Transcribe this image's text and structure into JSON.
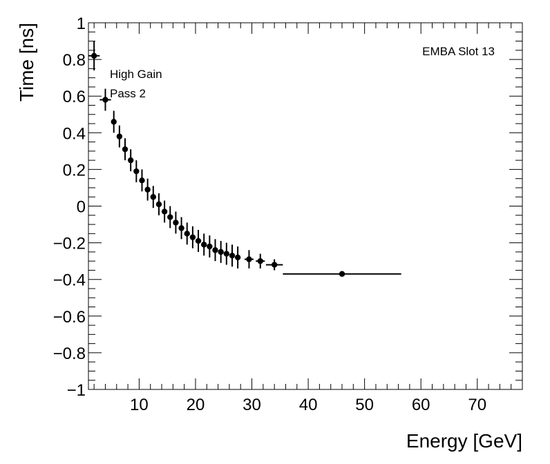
{
  "chart_data": {
    "type": "scatter",
    "title": "",
    "xlabel": "Energy [GeV]",
    "ylabel": "Time [ns]",
    "xlim": [
      1,
      78
    ],
    "ylim": [
      -1,
      1
    ],
    "x_ticks": [
      10,
      20,
      30,
      40,
      50,
      60,
      70
    ],
    "x_tick_labels": [
      "10",
      "20",
      "30",
      "40",
      "50",
      "60",
      "70"
    ],
    "y_ticks": [
      -1,
      -0.8,
      -0.6,
      -0.4,
      -0.2,
      0,
      0.2,
      0.4,
      0.6,
      0.8,
      1
    ],
    "y_tick_labels": [
      "−1",
      "−0.8",
      "−0.6",
      "−0.4",
      "−0.2",
      "0",
      "0.2",
      "0.4",
      "0.6",
      "0.8",
      "1"
    ],
    "grid": false,
    "annotations": {
      "slot": "EMBA Slot 13",
      "gain": "High Gain",
      "pass": "Pass 2"
    },
    "series": [
      {
        "name": "EMBA Slot 13",
        "points": [
          {
            "x": 2.0,
            "y": 0.82,
            "xerr": 1.0,
            "yerr": 0.08
          },
          {
            "x": 4.0,
            "y": 0.58,
            "xerr": 1.0,
            "yerr": 0.06
          },
          {
            "x": 5.5,
            "y": 0.46,
            "xerr": 0,
            "yerr": 0.06
          },
          {
            "x": 6.5,
            "y": 0.38,
            "xerr": 0,
            "yerr": 0.06
          },
          {
            "x": 7.5,
            "y": 0.31,
            "xerr": 0,
            "yerr": 0.06
          },
          {
            "x": 8.5,
            "y": 0.25,
            "xerr": 0,
            "yerr": 0.06
          },
          {
            "x": 9.5,
            "y": 0.19,
            "xerr": 0,
            "yerr": 0.06
          },
          {
            "x": 10.5,
            "y": 0.14,
            "xerr": 0,
            "yerr": 0.06
          },
          {
            "x": 11.5,
            "y": 0.09,
            "xerr": 0,
            "yerr": 0.06
          },
          {
            "x": 12.5,
            "y": 0.05,
            "xerr": 0,
            "yerr": 0.06
          },
          {
            "x": 13.5,
            "y": 0.01,
            "xerr": 0,
            "yerr": 0.06
          },
          {
            "x": 14.5,
            "y": -0.03,
            "xerr": 0,
            "yerr": 0.06
          },
          {
            "x": 15.5,
            "y": -0.06,
            "xerr": 0,
            "yerr": 0.06
          },
          {
            "x": 16.5,
            "y": -0.09,
            "xerr": 0,
            "yerr": 0.06
          },
          {
            "x": 17.5,
            "y": -0.12,
            "xerr": 0,
            "yerr": 0.06
          },
          {
            "x": 18.5,
            "y": -0.15,
            "xerr": 0,
            "yerr": 0.06
          },
          {
            "x": 19.5,
            "y": -0.17,
            "xerr": 0,
            "yerr": 0.06
          },
          {
            "x": 20.5,
            "y": -0.19,
            "xerr": 0,
            "yerr": 0.06
          },
          {
            "x": 21.5,
            "y": -0.21,
            "xerr": 0,
            "yerr": 0.06
          },
          {
            "x": 22.5,
            "y": -0.22,
            "xerr": 0,
            "yerr": 0.06
          },
          {
            "x": 23.5,
            "y": -0.24,
            "xerr": 0,
            "yerr": 0.06
          },
          {
            "x": 24.5,
            "y": -0.25,
            "xerr": 0,
            "yerr": 0.06
          },
          {
            "x": 25.5,
            "y": -0.26,
            "xerr": 0,
            "yerr": 0.06
          },
          {
            "x": 26.5,
            "y": -0.27,
            "xerr": 0,
            "yerr": 0.06
          },
          {
            "x": 27.5,
            "y": -0.28,
            "xerr": 0,
            "yerr": 0.06
          },
          {
            "x": 29.5,
            "y": -0.29,
            "xerr": 0.8,
            "yerr": 0.05
          },
          {
            "x": 31.5,
            "y": -0.3,
            "xerr": 0.8,
            "yerr": 0.04
          },
          {
            "x": 34.0,
            "y": -0.32,
            "xerr": 1.5,
            "yerr": 0.03
          },
          {
            "x": 46.0,
            "y": -0.37,
            "xerr": 10.5,
            "yerr": 0.01
          }
        ]
      }
    ]
  }
}
